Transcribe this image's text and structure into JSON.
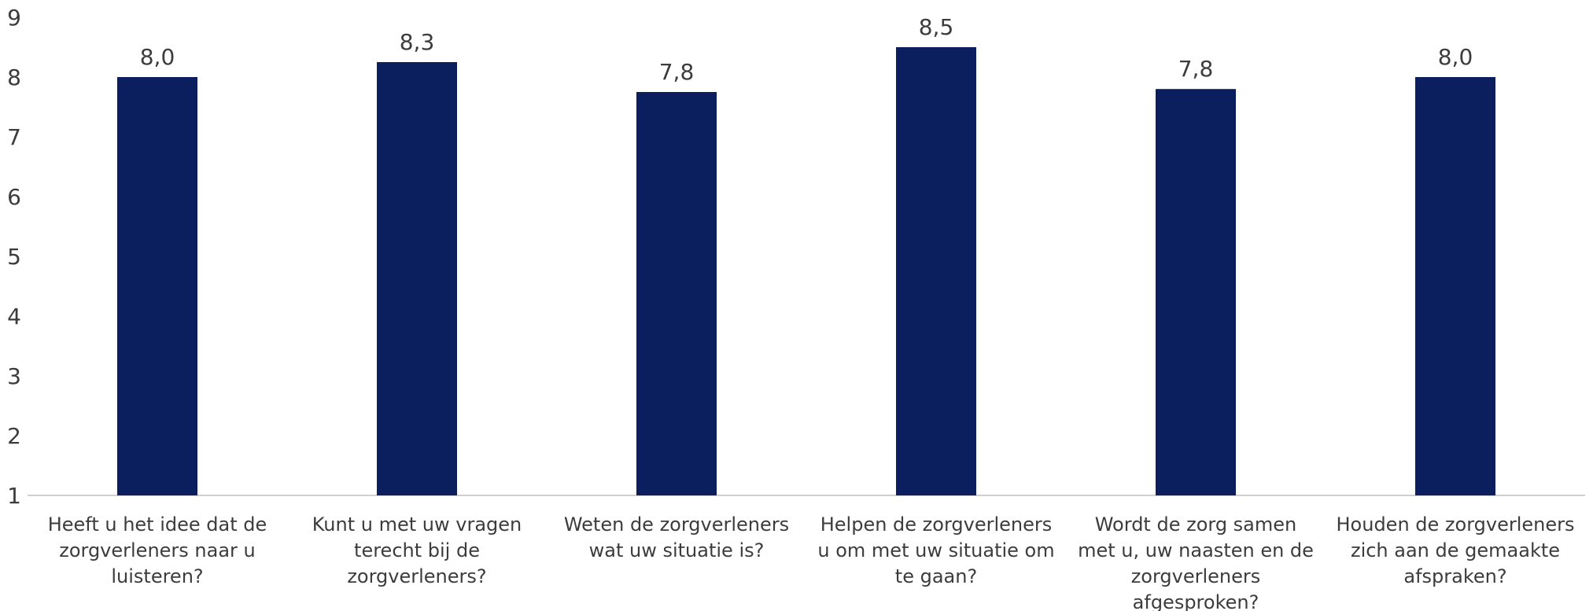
{
  "chart_data": {
    "type": "bar",
    "categories": [
      [
        "Heeft u het idee dat de",
        "zorgverleners naar u",
        "luisteren?"
      ],
      [
        "Kunt u met uw vragen",
        "terecht bij de",
        "zorgverleners?"
      ],
      [
        "Weten de zorgverleners",
        "wat uw situatie is?"
      ],
      [
        "Helpen de zorgverleners",
        "u om met uw situatie om",
        "te gaan?"
      ],
      [
        "Wordt de zorg samen",
        "met u, uw naasten en de",
        "zorgverleners",
        "afgesproken?"
      ],
      [
        "Houden de zorgverleners",
        "zich aan de gemaakte",
        "afspraken?"
      ]
    ],
    "values": [
      8.0,
      8.25,
      7.75,
      8.5,
      7.8,
      8.0
    ],
    "data_labels": [
      "8,0",
      "8,3",
      "7,8",
      "8,5",
      "7,8",
      "8,0"
    ],
    "ylim": [
      1,
      9
    ],
    "yticks": [
      1,
      2,
      3,
      4,
      5,
      6,
      7,
      8,
      9
    ],
    "grid": false,
    "bar_color": "#0b1f5e",
    "axis_color": "#d0d0d0",
    "text_color": "#3c3c3c"
  }
}
